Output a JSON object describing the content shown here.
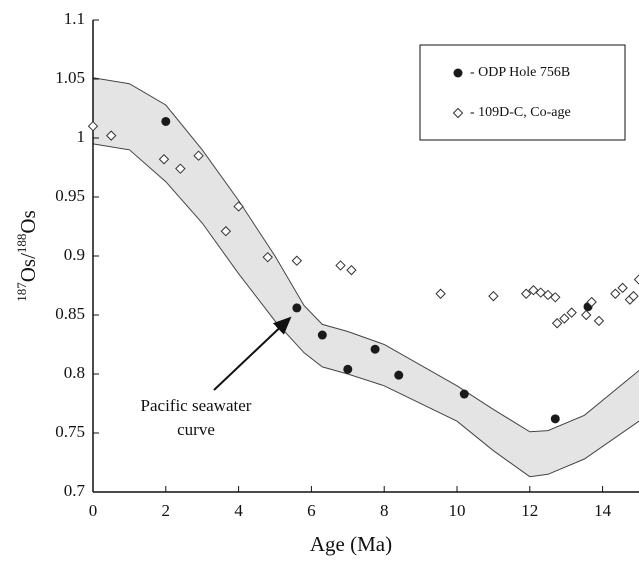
{
  "chart_data": {
    "type": "scatter",
    "xlabel": "Age (Ma)",
    "ylabel": [
      "187",
      "Os/",
      "188",
      "Os"
    ],
    "xlim": [
      0,
      15
    ],
    "ylim": [
      0.7,
      1.1
    ],
    "xticks": [
      0,
      2,
      4,
      6,
      8,
      10,
      12,
      14
    ],
    "yticks": [
      0.7,
      0.75,
      0.8,
      0.85,
      0.9,
      0.95,
      1,
      1.05,
      1.1
    ],
    "annotation": [
      "Pacific seawater",
      "curve"
    ],
    "band": {
      "color": "#e4e4e4",
      "x": [
        0,
        1,
        2,
        3,
        4,
        5,
        5.8,
        6.3,
        7,
        8,
        10,
        11,
        12,
        12.5,
        13.5,
        15
      ],
      "upper": [
        1.051,
        1.046,
        1.028,
        0.99,
        0.947,
        0.9,
        0.858,
        0.842,
        0.836,
        0.825,
        0.79,
        0.77,
        0.751,
        0.752,
        0.765,
        0.803
      ],
      "lower": [
        0.995,
        0.99,
        0.963,
        0.928,
        0.885,
        0.845,
        0.818,
        0.806,
        0.8,
        0.79,
        0.76,
        0.735,
        0.713,
        0.715,
        0.728,
        0.76
      ]
    },
    "series": [
      {
        "name": "- ODP Hole 756B",
        "marker": "circle",
        "color": "#1a1a1a",
        "x": [
          2,
          5.6,
          6.3,
          7,
          7.75,
          8.4,
          10.2,
          12.7,
          13.6
        ],
        "values": [
          1.014,
          0.856,
          0.833,
          0.804,
          0.821,
          0.799,
          0.783,
          0.762,
          0.857
        ]
      },
      {
        "name": "- 109D-C, Co-age",
        "marker": "diamond",
        "color": "#333333",
        "x": [
          0,
          0.5,
          1.95,
          2.4,
          2.9,
          3.65,
          4,
          4.8,
          5.6,
          6.8,
          7.1,
          9.55,
          11,
          11.9,
          12.1,
          12.3,
          12.5,
          12.7,
          12.75,
          12.95,
          13.15,
          13.55,
          13.7,
          13.9,
          14.35,
          14.55,
          14.75,
          14.85,
          15
        ],
        "values": [
          1.01,
          1.002,
          0.982,
          0.974,
          0.985,
          0.921,
          0.942,
          0.899,
          0.896,
          0.892,
          0.888,
          0.868,
          0.866,
          0.868,
          0.871,
          0.869,
          0.867,
          0.865,
          0.843,
          0.847,
          0.852,
          0.85,
          0.861,
          0.845,
          0.868,
          0.873,
          0.863,
          0.866,
          0.88
        ]
      }
    ]
  }
}
